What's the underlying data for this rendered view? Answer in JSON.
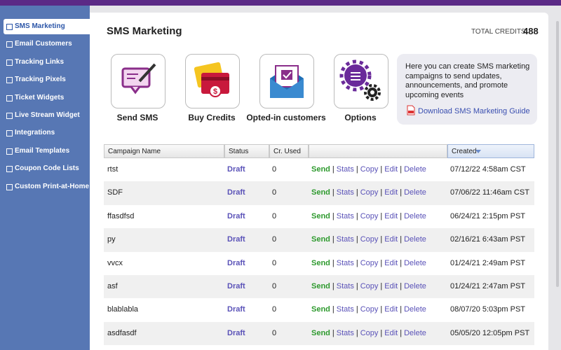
{
  "sidebar": {
    "items": [
      "SMS Marketing",
      "Email Customers",
      "Tracking Links",
      "Tracking Pixels",
      "Ticket Widgets",
      "Live Stream Widget",
      "Integrations",
      "Email Templates",
      "Coupon Code Lists",
      "Custom Print-at-Home"
    ]
  },
  "header": {
    "title": "SMS Marketing",
    "credits_label": "TOTAL CREDITS:",
    "credits_value": 488
  },
  "tiles": [
    "Send SMS",
    "Buy Credits",
    "Opted-in customers",
    "Options"
  ],
  "info": {
    "text": "Here you can create SMS marketing campaigns to send updates, announcements, and promote upcoming events",
    "link": "Download SMS Marketing Guide"
  },
  "table": {
    "columns": {
      "name": "Campaign Name",
      "status": "Status",
      "credits": "Cr. Used",
      "created": "Created"
    },
    "actions": [
      "Send",
      "Stats",
      "Copy",
      "Edit",
      "Delete"
    ],
    "separator": "|",
    "rows": [
      [
        "rtst",
        "Draft",
        0,
        "07/12/22 4:58am CST"
      ],
      [
        "SDF",
        "Draft",
        0,
        "07/06/22 11:46am CST"
      ],
      [
        "ffasdfsd",
        "Draft",
        0,
        "06/24/21 2:15pm PST"
      ],
      [
        "py",
        "Draft",
        0,
        "02/16/21 6:43am PST"
      ],
      [
        "vvcx",
        "Draft",
        0,
        "01/24/21 2:49am PST"
      ],
      [
        "asf",
        "Draft",
        0,
        "01/24/21 2:47am PST"
      ],
      [
        "blablabla",
        "Draft",
        0,
        "08/07/20 5:03pm PST"
      ],
      [
        "asdfasdf",
        "Draft",
        0,
        "05/05/20 12:05pm PST"
      ]
    ]
  }
}
